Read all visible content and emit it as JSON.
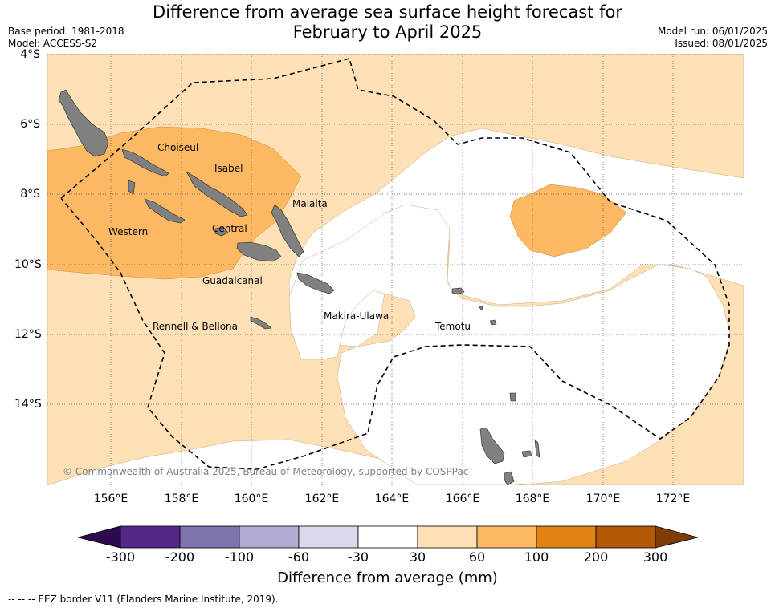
{
  "title": {
    "line1": "Difference from average sea surface height forecast for",
    "line2": "February to April 2025"
  },
  "meta": {
    "base_period": "Base period: 1981-2018",
    "model": "Model: ACCESS-S2",
    "model_run": "Model run: 06/01/2025",
    "issued": "Issued: 08/01/2025"
  },
  "axes": {
    "lat_labels": [
      "4°S",
      "6°S",
      "8°S",
      "10°S",
      "12°S",
      "14°S"
    ],
    "lon_labels": [
      "156°E",
      "158°E",
      "160°E",
      "162°E",
      "164°E",
      "166°E",
      "168°E",
      "170°E",
      "172°E"
    ],
    "lon_range": [
      154,
      174
    ],
    "lat_range": [
      -4,
      -16.2
    ]
  },
  "places": {
    "choiseul": "Choiseul",
    "isabel": "Isabel",
    "malaita": "Malaita",
    "western": "Western",
    "central": "Central",
    "guadalcanal": "Guadalcanal",
    "makira": "Makira-Ulawa",
    "temotu": "Temotu",
    "rennell": "Rennell & Bellona"
  },
  "copyright": "© Commonwealth of Australia 2025, Bureau of Meteorology, supported by COSPPac",
  "colorbar": {
    "title": "Difference from average (mm)",
    "ticks": [
      "-300",
      "-200",
      "-100",
      "-60",
      "-30",
      "30",
      "60",
      "100",
      "200",
      "300"
    ],
    "colors": [
      "#2d0a4e",
      "#542788",
      "#8073ac",
      "#b2abd2",
      "#d8daeb",
      "#ffffff",
      "#fee0b6",
      "#fdb863",
      "#e08214",
      "#b35806",
      "#7f3b08"
    ]
  },
  "legend": {
    "eez": "--  --  -- EEZ border V11 (Flanders Marine Institute, 2019)."
  }
}
